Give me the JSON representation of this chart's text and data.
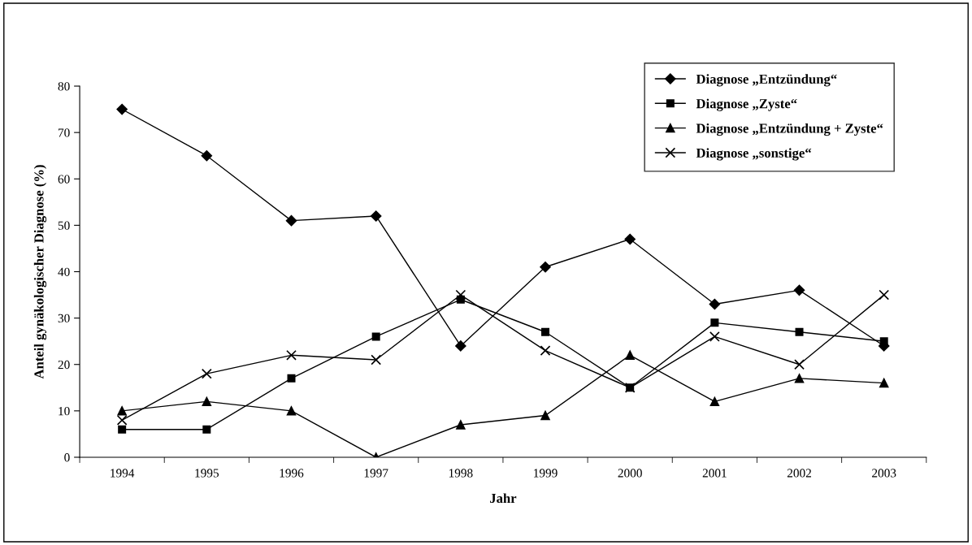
{
  "chart_data": {
    "type": "line",
    "xlabel": "Jahr",
    "ylabel": "Anteil gynäkologischer Diagnose (%)",
    "categories": [
      "1994",
      "1995",
      "1996",
      "1997",
      "1998",
      "1999",
      "2000",
      "2001",
      "2002",
      "2003"
    ],
    "series": [
      {
        "name": "Diagnose „Entzündung“",
        "color": "#000000",
        "marker": "diamond",
        "values": [
          75,
          65,
          51,
          52,
          24,
          41,
          47,
          33,
          36,
          24
        ]
      },
      {
        "name": "Diagnose „Zyste“",
        "color": "#000000",
        "marker": "square",
        "values": [
          6,
          6,
          17,
          26,
          34,
          27,
          15,
          29,
          27,
          25
        ]
      },
      {
        "name": "Diagnose „Entzündung + Zyste“",
        "color": "#000000",
        "marker": "triangle",
        "values": [
          10,
          12,
          10,
          0,
          7,
          9,
          22,
          12,
          17,
          16
        ]
      },
      {
        "name": "Diagnose „sonstige“",
        "color": "#000000",
        "marker": "cross",
        "values": [
          8,
          18,
          22,
          21,
          35,
          23,
          15,
          26,
          20,
          35
        ]
      }
    ],
    "ylim": [
      0,
      80
    ],
    "yticks": [
      0,
      10,
      20,
      30,
      40,
      50,
      60,
      70,
      80
    ],
    "grid": false,
    "legend": "top right",
    "line_style": "solid"
  }
}
